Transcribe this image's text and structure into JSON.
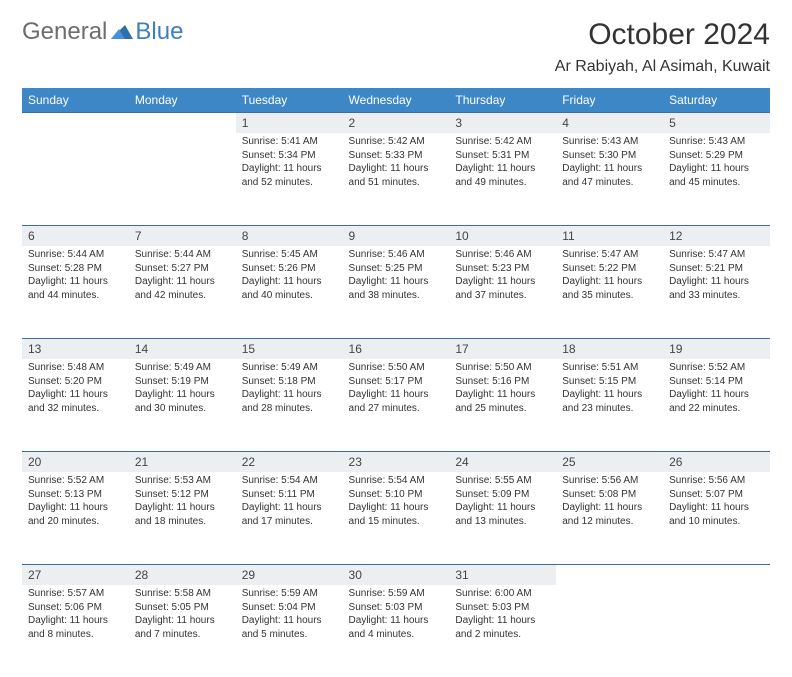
{
  "logo": {
    "word1": "General",
    "word2": "Blue"
  },
  "title": "October 2024",
  "location": "Ar Rabiyah, Al Asimah, Kuwait",
  "colors": {
    "header_bg": "#3d87c7",
    "header_fg": "#ffffff",
    "daynum_bg": "#eceff1",
    "rule": "#3d6f9e",
    "logo_gray": "#6d6d6d",
    "logo_blue": "#3d7fbf"
  },
  "weekdays": [
    "Sunday",
    "Monday",
    "Tuesday",
    "Wednesday",
    "Thursday",
    "Friday",
    "Saturday"
  ],
  "weeks": [
    [
      null,
      null,
      {
        "n": "1",
        "sr": "5:41 AM",
        "ss": "5:34 PM",
        "dl": "11 hours and 52 minutes."
      },
      {
        "n": "2",
        "sr": "5:42 AM",
        "ss": "5:33 PM",
        "dl": "11 hours and 51 minutes."
      },
      {
        "n": "3",
        "sr": "5:42 AM",
        "ss": "5:31 PM",
        "dl": "11 hours and 49 minutes."
      },
      {
        "n": "4",
        "sr": "5:43 AM",
        "ss": "5:30 PM",
        "dl": "11 hours and 47 minutes."
      },
      {
        "n": "5",
        "sr": "5:43 AM",
        "ss": "5:29 PM",
        "dl": "11 hours and 45 minutes."
      }
    ],
    [
      {
        "n": "6",
        "sr": "5:44 AM",
        "ss": "5:28 PM",
        "dl": "11 hours and 44 minutes."
      },
      {
        "n": "7",
        "sr": "5:44 AM",
        "ss": "5:27 PM",
        "dl": "11 hours and 42 minutes."
      },
      {
        "n": "8",
        "sr": "5:45 AM",
        "ss": "5:26 PM",
        "dl": "11 hours and 40 minutes."
      },
      {
        "n": "9",
        "sr": "5:46 AM",
        "ss": "5:25 PM",
        "dl": "11 hours and 38 minutes."
      },
      {
        "n": "10",
        "sr": "5:46 AM",
        "ss": "5:23 PM",
        "dl": "11 hours and 37 minutes."
      },
      {
        "n": "11",
        "sr": "5:47 AM",
        "ss": "5:22 PM",
        "dl": "11 hours and 35 minutes."
      },
      {
        "n": "12",
        "sr": "5:47 AM",
        "ss": "5:21 PM",
        "dl": "11 hours and 33 minutes."
      }
    ],
    [
      {
        "n": "13",
        "sr": "5:48 AM",
        "ss": "5:20 PM",
        "dl": "11 hours and 32 minutes."
      },
      {
        "n": "14",
        "sr": "5:49 AM",
        "ss": "5:19 PM",
        "dl": "11 hours and 30 minutes."
      },
      {
        "n": "15",
        "sr": "5:49 AM",
        "ss": "5:18 PM",
        "dl": "11 hours and 28 minutes."
      },
      {
        "n": "16",
        "sr": "5:50 AM",
        "ss": "5:17 PM",
        "dl": "11 hours and 27 minutes."
      },
      {
        "n": "17",
        "sr": "5:50 AM",
        "ss": "5:16 PM",
        "dl": "11 hours and 25 minutes."
      },
      {
        "n": "18",
        "sr": "5:51 AM",
        "ss": "5:15 PM",
        "dl": "11 hours and 23 minutes."
      },
      {
        "n": "19",
        "sr": "5:52 AM",
        "ss": "5:14 PM",
        "dl": "11 hours and 22 minutes."
      }
    ],
    [
      {
        "n": "20",
        "sr": "5:52 AM",
        "ss": "5:13 PM",
        "dl": "11 hours and 20 minutes."
      },
      {
        "n": "21",
        "sr": "5:53 AM",
        "ss": "5:12 PM",
        "dl": "11 hours and 18 minutes."
      },
      {
        "n": "22",
        "sr": "5:54 AM",
        "ss": "5:11 PM",
        "dl": "11 hours and 17 minutes."
      },
      {
        "n": "23",
        "sr": "5:54 AM",
        "ss": "5:10 PM",
        "dl": "11 hours and 15 minutes."
      },
      {
        "n": "24",
        "sr": "5:55 AM",
        "ss": "5:09 PM",
        "dl": "11 hours and 13 minutes."
      },
      {
        "n": "25",
        "sr": "5:56 AM",
        "ss": "5:08 PM",
        "dl": "11 hours and 12 minutes."
      },
      {
        "n": "26",
        "sr": "5:56 AM",
        "ss": "5:07 PM",
        "dl": "11 hours and 10 minutes."
      }
    ],
    [
      {
        "n": "27",
        "sr": "5:57 AM",
        "ss": "5:06 PM",
        "dl": "11 hours and 8 minutes."
      },
      {
        "n": "28",
        "sr": "5:58 AM",
        "ss": "5:05 PM",
        "dl": "11 hours and 7 minutes."
      },
      {
        "n": "29",
        "sr": "5:59 AM",
        "ss": "5:04 PM",
        "dl": "11 hours and 5 minutes."
      },
      {
        "n": "30",
        "sr": "5:59 AM",
        "ss": "5:03 PM",
        "dl": "11 hours and 4 minutes."
      },
      {
        "n": "31",
        "sr": "6:00 AM",
        "ss": "5:03 PM",
        "dl": "11 hours and 2 minutes."
      },
      null,
      null
    ]
  ],
  "labels": {
    "sunrise": "Sunrise:",
    "sunset": "Sunset:",
    "daylight": "Daylight:"
  }
}
